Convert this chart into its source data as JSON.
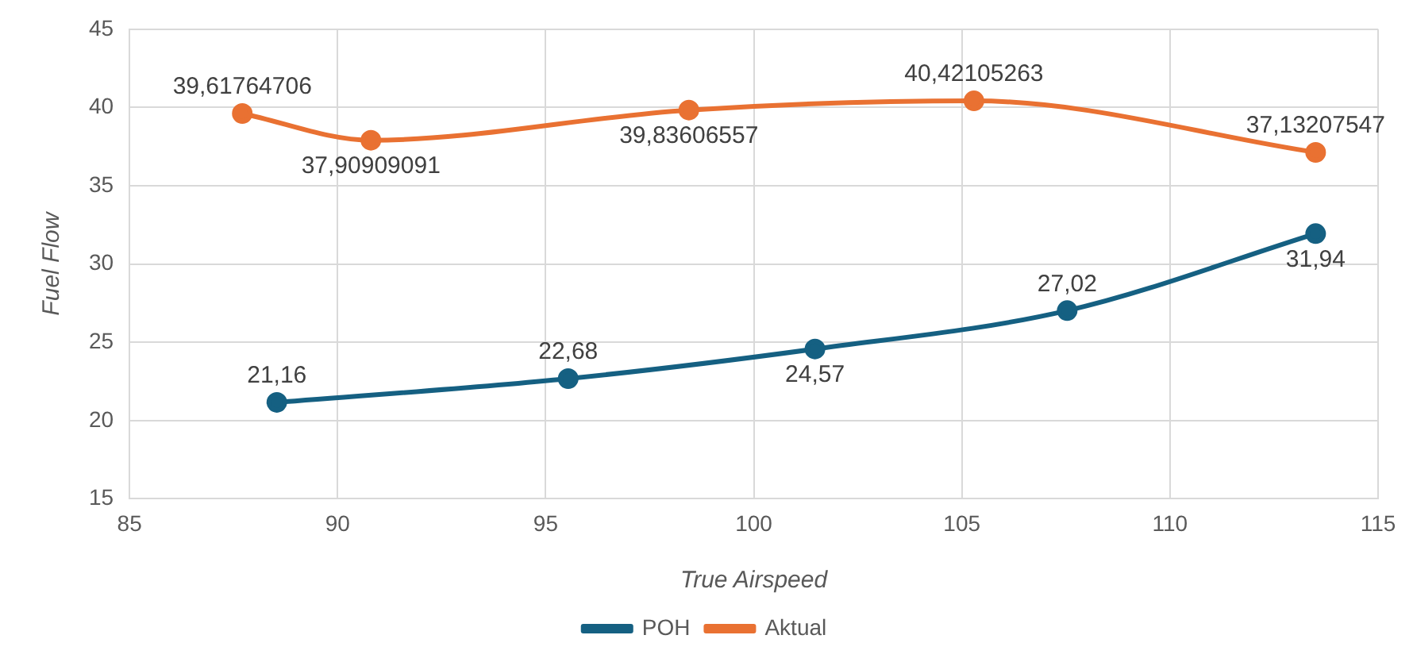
{
  "chart_data": {
    "type": "line",
    "xlabel": "True Airspeed",
    "ylabel": "Fuel Flow",
    "xlim": [
      85,
      115
    ],
    "xticks": [
      85,
      90,
      95,
      100,
      105,
      110,
      115
    ],
    "ylim": [
      15,
      45
    ],
    "yticks": [
      15,
      20,
      25,
      30,
      35,
      40,
      45
    ],
    "grid": true,
    "legend": "bottom",
    "marker": "circle",
    "series": [
      {
        "name": "POH",
        "color": "#156082",
        "x": [
          88.54,
          95.54,
          101.47,
          107.53,
          113.5
        ],
        "values": [
          21.16,
          22.68,
          24.57,
          27.02,
          31.94
        ],
        "value_labels": [
          "21,16",
          "22,68",
          "24,57",
          "27,02",
          "31,94"
        ]
      },
      {
        "name": "Aktual",
        "color": "#e97132",
        "x": [
          87.71,
          90.8,
          98.44,
          105.29,
          113.5
        ],
        "values": [
          39.61764706,
          37.90909091,
          39.83606557,
          40.42105263,
          37.13207547
        ],
        "value_labels": [
          "39,61764706",
          "37,90909091",
          "39,83606557",
          "40,42105263",
          "37,13207547"
        ]
      }
    ]
  }
}
